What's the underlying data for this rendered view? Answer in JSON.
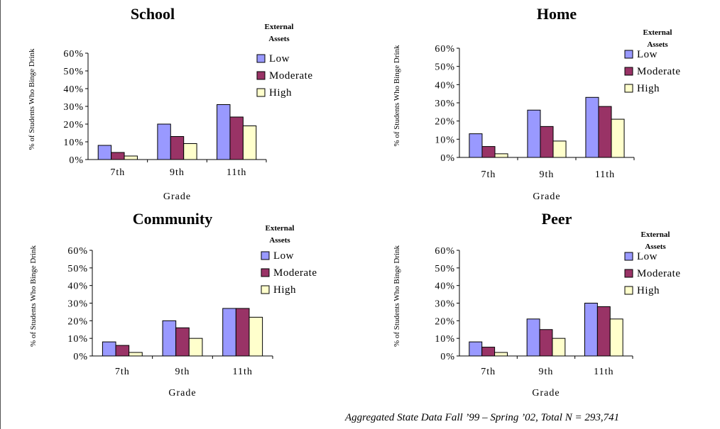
{
  "colors": {
    "Low": "#9999ff",
    "Moderate": "#993366",
    "High": "#ffffcc",
    "outline": "#000000"
  },
  "footnote": "Aggregated State Data Fall ’99 – Spring ’02, Total N = 293,741",
  "chart_data": [
    {
      "type": "bar",
      "title": "School",
      "legend_title": [
        "External",
        "Assets"
      ],
      "categories": [
        "7th",
        "9th",
        "11th"
      ],
      "xlabel": "Grade",
      "ylabel": "% of Students Who Binge Drink",
      "ylim": [
        0,
        60
      ],
      "yticks": [
        "0%",
        "10%",
        "20%",
        "30%",
        "40%",
        "50%",
        "60%"
      ],
      "series": [
        {
          "name": "Low",
          "values": [
            8,
            20,
            31
          ]
        },
        {
          "name": "Moderate",
          "values": [
            4,
            13,
            24
          ]
        },
        {
          "name": "High",
          "values": [
            2,
            9,
            19
          ]
        }
      ]
    },
    {
      "type": "bar",
      "title": "Home",
      "legend_title": [
        "External",
        "Assets"
      ],
      "categories": [
        "7th",
        "9th",
        "11th"
      ],
      "xlabel": "Grade",
      "ylabel": "% of Students Who Binge Drink",
      "ylim": [
        0,
        60
      ],
      "yticks": [
        "0%",
        "10%",
        "20%",
        "30%",
        "40%",
        "50%",
        "60%"
      ],
      "series": [
        {
          "name": "Low",
          "values": [
            13,
            26,
            33
          ]
        },
        {
          "name": "Moderate",
          "values": [
            6,
            17,
            28
          ]
        },
        {
          "name": "High",
          "values": [
            2,
            9,
            21
          ]
        }
      ]
    },
    {
      "type": "bar",
      "title": "Community",
      "legend_title": [
        "External",
        "Assets"
      ],
      "categories": [
        "7th",
        "9th",
        "11th"
      ],
      "xlabel": "Grade",
      "ylabel": "% of Students Who Binge Drink",
      "ylim": [
        0,
        60
      ],
      "yticks": [
        "0%",
        "10%",
        "20%",
        "30%",
        "40%",
        "50%",
        "60%"
      ],
      "series": [
        {
          "name": "Low",
          "values": [
            8,
            20,
            27
          ]
        },
        {
          "name": "Moderate",
          "values": [
            6,
            16,
            27
          ]
        },
        {
          "name": "High",
          "values": [
            2,
            10,
            22
          ]
        }
      ]
    },
    {
      "type": "bar",
      "title": "Peer",
      "legend_title": [
        "External",
        "Assets"
      ],
      "categories": [
        "7th",
        "9th",
        "11th"
      ],
      "xlabel": "Grade",
      "ylabel": "% of Students Who Binge Drink",
      "ylim": [
        0,
        60
      ],
      "yticks": [
        "0%",
        "10%",
        "20%",
        "30%",
        "40%",
        "50%",
        "60%"
      ],
      "series": [
        {
          "name": "Low",
          "values": [
            8,
            21,
            30
          ]
        },
        {
          "name": "Moderate",
          "values": [
            5,
            15,
            28
          ]
        },
        {
          "name": "High",
          "values": [
            2,
            10,
            21
          ]
        }
      ]
    }
  ]
}
